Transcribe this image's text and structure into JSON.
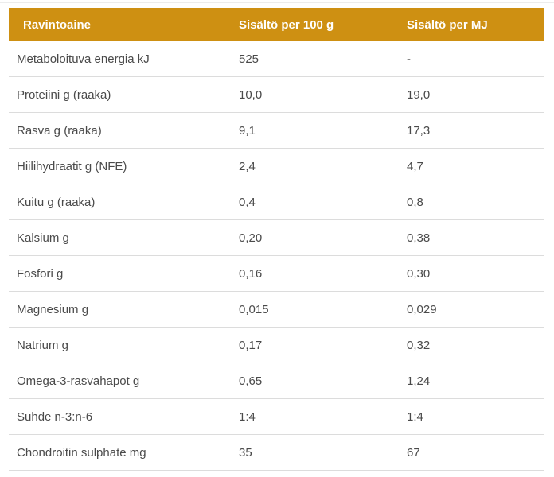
{
  "colors": {
    "header_background": "#CE9012",
    "header_text": "#FFFFFF",
    "body_text": "#4A4A4A",
    "row_divider": "#DCDCDC",
    "page_background": "#FFFFFF"
  },
  "table": {
    "columns": [
      {
        "label": "Ravintoaine"
      },
      {
        "label": "Sisältö per 100 g"
      },
      {
        "label": "Sisältö per MJ"
      }
    ],
    "rows": [
      {
        "name": "Metaboloituva energia kJ",
        "per_100g": "525",
        "per_mj": "-"
      },
      {
        "name": "Proteiini g (raaka)",
        "per_100g": "10,0",
        "per_mj": "19,0"
      },
      {
        "name": "Rasva g (raaka)",
        "per_100g": "9,1",
        "per_mj": "17,3"
      },
      {
        "name": "Hiilihydraatit g (NFE)",
        "per_100g": "2,4",
        "per_mj": "4,7"
      },
      {
        "name": "Kuitu g (raaka)",
        "per_100g": "0,4",
        "per_mj": "0,8"
      },
      {
        "name": "Kalsium g",
        "per_100g": "0,20",
        "per_mj": "0,38"
      },
      {
        "name": "Fosfori g",
        "per_100g": "0,16",
        "per_mj": "0,30"
      },
      {
        "name": "Magnesium g",
        "per_100g": "0,015",
        "per_mj": "0,029"
      },
      {
        "name": "Natrium g",
        "per_100g": "0,17",
        "per_mj": "0,32"
      },
      {
        "name": "Omega-3-rasvahapot g",
        "per_100g": "0,65",
        "per_mj": "1,24"
      },
      {
        "name": "Suhde n-3:n-6",
        "per_100g": "1:4",
        "per_mj": "1:4"
      },
      {
        "name": "Chondroitin sulphate mg",
        "per_100g": "35",
        "per_mj": "67"
      }
    ]
  }
}
